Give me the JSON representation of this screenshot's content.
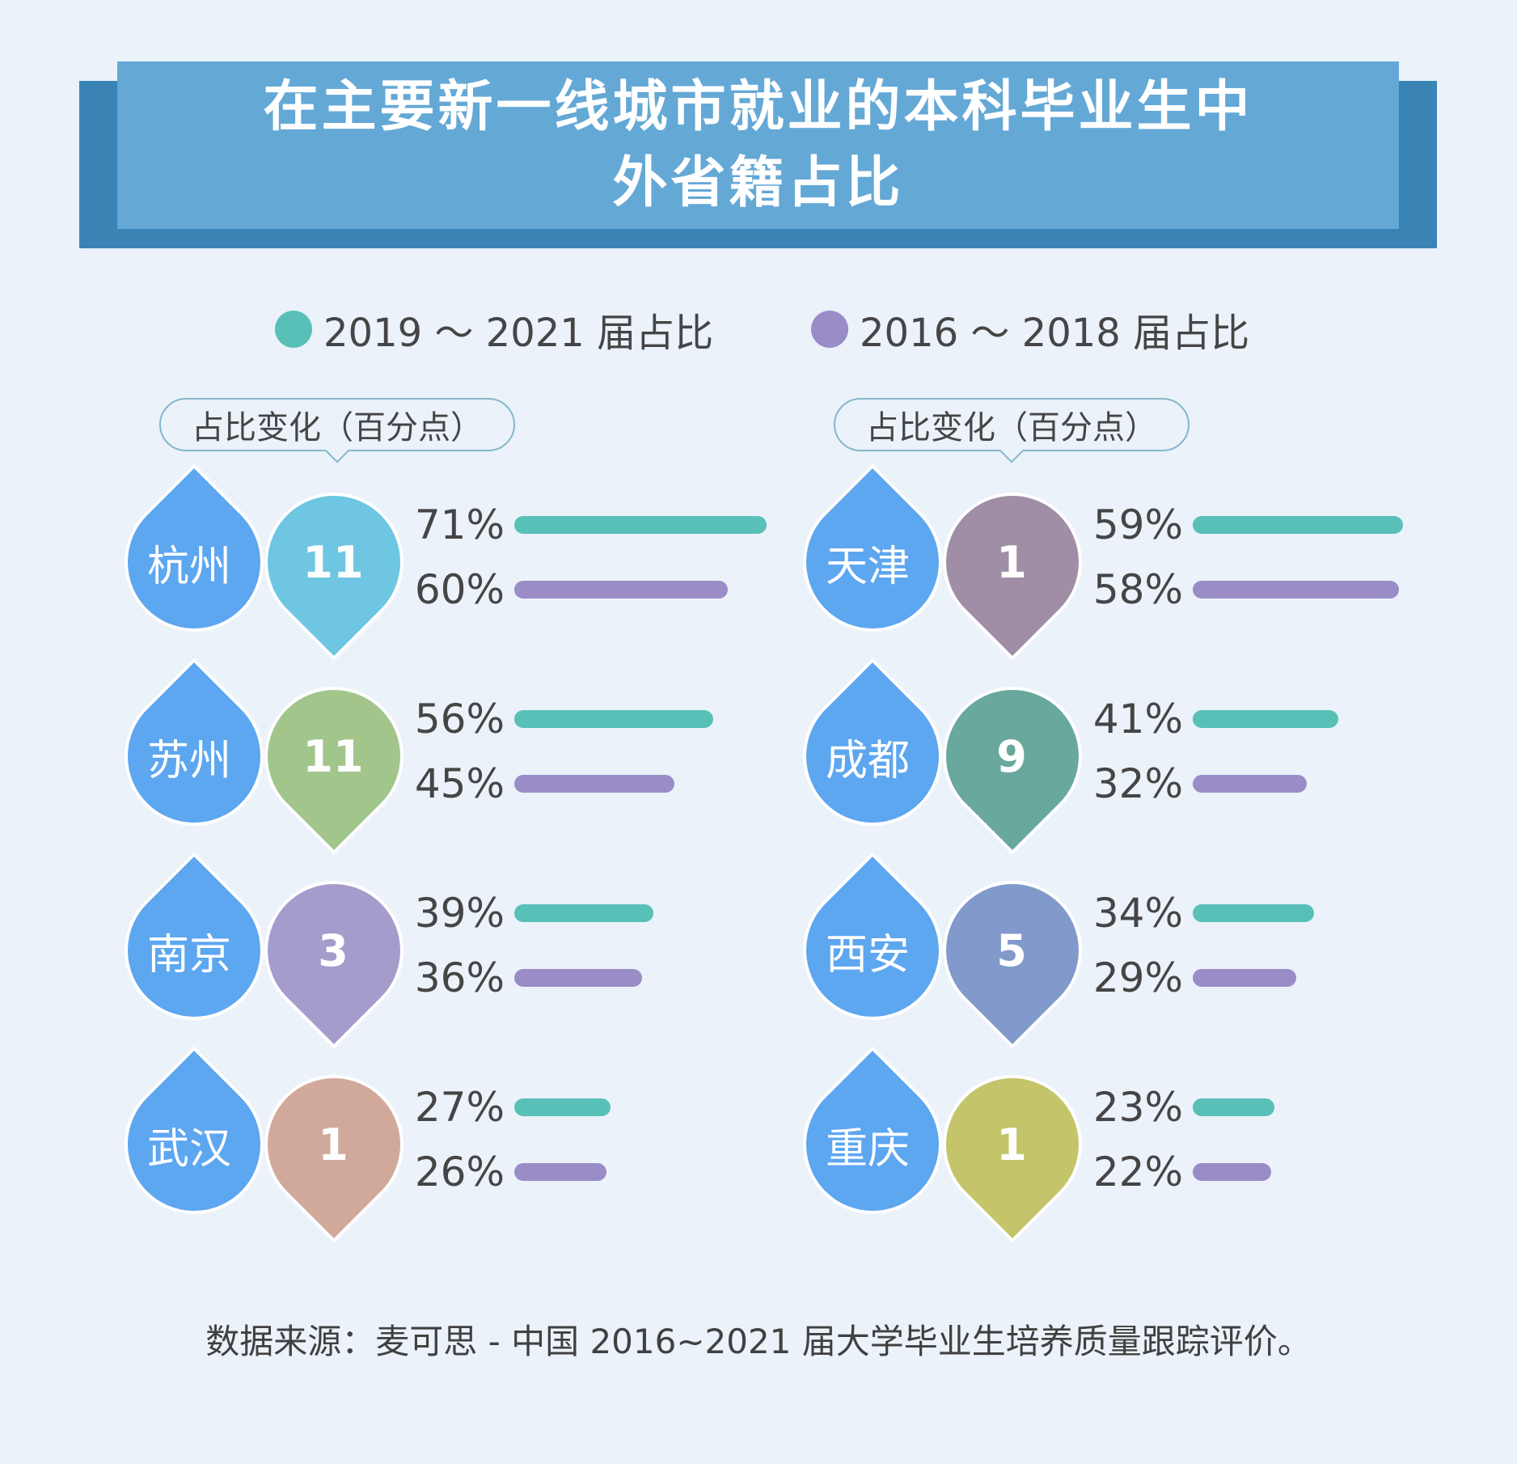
{
  "title": {
    "line1": "在主要新一线城市就业的本科毕业生中",
    "line2": "外省籍占比"
  },
  "legend": [
    {
      "label": "2019 ～ 2021 届占比",
      "color": "#58c0b7"
    },
    {
      "label": "2016 ～ 2018 届占比",
      "color": "#9a8cc7"
    }
  ],
  "change_label": "占比变化（百分点）",
  "footnote": "数据来源：麦可思 - 中国 2016~2021 届大学毕业生培养质量跟踪评价。",
  "city_badge_color": "#5da6f0",
  "chart_data": {
    "type": "bar",
    "orientation": "horizontal",
    "unit": "%",
    "xlim": [
      0,
      100
    ],
    "series": [
      {
        "name": "2019 ～ 2021 届占比",
        "color": "#58c0b7"
      },
      {
        "name": "2016 ～ 2018 届占比",
        "color": "#9a8cc7"
      }
    ],
    "columns": [
      {
        "change_label": "占比变化（百分点）",
        "rows": [
          {
            "city": "杭州",
            "change": "11",
            "color": "#6ec6e2",
            "values": [
              71,
              60
            ],
            "labels": [
              "71%",
              "60%"
            ]
          },
          {
            "city": "苏州",
            "change": "11",
            "color": "#a1c58b",
            "values": [
              56,
              45
            ],
            "labels": [
              "56%",
              "45%"
            ]
          },
          {
            "city": "南京",
            "change": "3",
            "color": "#a59ccc",
            "values": [
              39,
              36
            ],
            "labels": [
              "39%",
              "36%"
            ]
          },
          {
            "city": "武汉",
            "change": "1",
            "color": "#d1a99b",
            "values": [
              27,
              26
            ],
            "labels": [
              "27%",
              "26%"
            ]
          }
        ]
      },
      {
        "change_label": "占比变化（百分点）",
        "rows": [
          {
            "city": "天津",
            "change": "1",
            "color": "#a08ea6",
            "values": [
              59,
              58
            ],
            "labels": [
              "59%",
              "58%"
            ]
          },
          {
            "city": "成都",
            "change": "9",
            "color": "#68a89d",
            "values": [
              41,
              32
            ],
            "labels": [
              "41%",
              "32%"
            ]
          },
          {
            "city": "西安",
            "change": "5",
            "color": "#8299cc",
            "values": [
              34,
              29
            ],
            "labels": [
              "34%",
              "29%"
            ]
          },
          {
            "city": "重庆",
            "change": "1",
            "color": "#c4c46a",
            "values": [
              23,
              22
            ],
            "labels": [
              "23%",
              "22%"
            ]
          }
        ]
      }
    ]
  }
}
